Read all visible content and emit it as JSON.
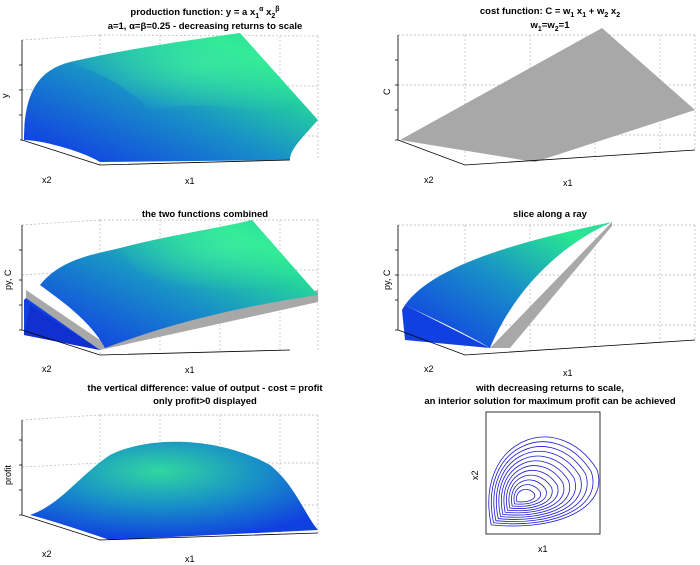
{
  "colors": {
    "surface_low": "#1040e0",
    "surface_mid": "#1888c8",
    "surface_high": "#28e890",
    "cost_plane": "#a8a8a8",
    "contour": "#1a1acc",
    "grid": "#b8b8b8"
  },
  "panels": {
    "p1": {
      "title_prefix": "production function: y = a x",
      "title_sub1": "1",
      "title_sup1": "α",
      "title_mid": " x",
      "title_sub2": "2",
      "title_sup2": "β",
      "subtitle": "a=1, α=β=0.25 - decreasing returns to scale",
      "zlabel": "y",
      "xlabel": "x1",
      "ylabel": "x2"
    },
    "p2": {
      "title_a": "cost function: C = w",
      "title_s1": "1",
      "title_b": " x",
      "title_s2": "1",
      "title_c": " + w",
      "title_s3": "2",
      "title_d": " x",
      "title_s4": "2",
      "subtitle_a": "w",
      "subtitle_s1": "1",
      "subtitle_b": "=w",
      "subtitle_s2": "2",
      "subtitle_c": "=1",
      "zlabel": "C",
      "xlabel": "x1",
      "ylabel": "x2"
    },
    "p3": {
      "title": "the two functions combined",
      "zlabel": "py, C",
      "xlabel": "x1",
      "ylabel": "x2"
    },
    "p4": {
      "title": "slice along a ray",
      "zlabel": "py, C",
      "xlabel": "x1",
      "ylabel": "x2"
    },
    "p5": {
      "title": "the vertical difference: value of output - cost = profit",
      "subtitle": "only profit>0 displayed",
      "zlabel": "profit",
      "xlabel": "x1",
      "ylabel": "x2"
    },
    "p6": {
      "title": "with decreasing returns to scale,",
      "subtitle": "an interior solution for maximum profit can be achieved",
      "xlabel": "x1",
      "ylabel": "x2"
    }
  },
  "chart_data": [
    {
      "type": "surface",
      "title": "production function: y = a x1^α x2^β",
      "subtitle": "a=1, α=β=0.25 - decreasing returns to scale",
      "function": "y = a * x1^0.25 * x2^0.25",
      "params": {
        "a": 1,
        "alpha": 0.25,
        "beta": 0.25
      },
      "xlabel": "x1",
      "ylabel": "x2",
      "zlabel": "y",
      "grid": true
    },
    {
      "type": "surface",
      "title": "cost function: C = w1 x1 + w2 x2",
      "subtitle": "w1=w2=1",
      "function": "C = w1*x1 + w2*x2",
      "params": {
        "w1": 1,
        "w2": 1
      },
      "xlabel": "x1",
      "ylabel": "x2",
      "zlabel": "C",
      "grid": true
    },
    {
      "type": "surface",
      "title": "the two functions combined",
      "series": [
        "py",
        "C"
      ],
      "xlabel": "x1",
      "ylabel": "x2",
      "zlabel": "py, C",
      "grid": true
    },
    {
      "type": "surface",
      "title": "slice along a ray",
      "series": [
        "py",
        "C"
      ],
      "xlabel": "x1",
      "ylabel": "x2",
      "zlabel": "py, C",
      "grid": true
    },
    {
      "type": "surface",
      "title": "the vertical difference: value of output - cost = profit",
      "subtitle": "only profit>0 displayed",
      "function": "profit = py - C",
      "xlabel": "x1",
      "ylabel": "x2",
      "zlabel": "profit",
      "grid": true
    },
    {
      "type": "contour",
      "title": "with decreasing returns to scale,",
      "subtitle": "an interior solution for maximum profit can be achieved",
      "function": "profit = py - C",
      "levels": 12,
      "xlabel": "x1",
      "ylabel": "x2"
    }
  ]
}
